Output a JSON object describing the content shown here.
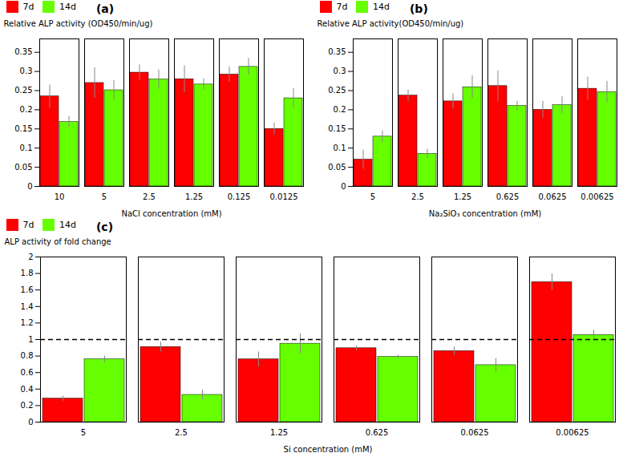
{
  "chart_data": [
    {
      "type": "bar",
      "title": "(a)",
      "xlabel": "NaCl concentration (mM)",
      "ylabel": "Relative ALP activity (OD450/min/ug)",
      "categories": [
        "10",
        "5",
        "2.5",
        "1.25",
        "0.125",
        "0.0125"
      ],
      "series": [
        {
          "name": "7d",
          "color": "#ff0000",
          "values": [
            0.235,
            0.27,
            0.297,
            0.28,
            0.292,
            0.15
          ],
          "error": [
            0.03,
            0.04,
            0.02,
            0.035,
            0.02,
            0.015
          ]
        },
        {
          "name": "14d",
          "color": "#66ff00",
          "values": [
            0.168,
            0.251,
            0.279,
            0.266,
            0.312,
            0.23
          ],
          "error": [
            0.015,
            0.025,
            0.025,
            0.015,
            0.022,
            0.025
          ]
        }
      ],
      "ylim": [
        0,
        0.385
      ],
      "yticks": [
        0.0,
        0.05,
        0.1,
        0.15,
        0.2,
        0.25,
        0.3,
        0.35
      ],
      "legend": "upper left"
    },
    {
      "type": "bar",
      "title": "(b)",
      "xlabel": "Na₂SiO₃ concentration (mM)",
      "ylabel": "Relative ALP activity(OD450/min/ug)",
      "categories": [
        "5",
        "2.5",
        "1.25",
        "0.625",
        "0.0625",
        "0.00625"
      ],
      "series": [
        {
          "name": "7d",
          "color": "#ff0000",
          "values": [
            0.07,
            0.237,
            0.222,
            0.262,
            0.2,
            0.255
          ],
          "error": [
            0.025,
            0.015,
            0.02,
            0.04,
            0.022,
            0.03
          ]
        },
        {
          "name": "14d",
          "color": "#66ff00",
          "values": [
            0.13,
            0.085,
            0.259,
            0.21,
            0.212,
            0.246
          ],
          "error": [
            0.015,
            0.012,
            0.03,
            0.012,
            0.022,
            0.028
          ]
        }
      ],
      "ylim": [
        0,
        0.385
      ],
      "yticks": [
        0.0,
        0.05,
        0.1,
        0.15,
        0.2,
        0.25,
        0.3,
        0.35
      ],
      "legend": "upper left"
    },
    {
      "type": "bar",
      "title": "(c)",
      "xlabel": "Si concentration (mM)",
      "ylabel": "ALP activity of fold change",
      "categories": [
        "5",
        "2.5",
        "1.25",
        "0.625",
        "0.0625",
        "0.00625"
      ],
      "series": [
        {
          "name": "7d",
          "color": "#ff0000",
          "values": [
            0.285,
            0.91,
            0.76,
            0.895,
            0.86,
            1.695
          ],
          "error": [
            0.03,
            0.06,
            0.09,
            0.03,
            0.05,
            0.1
          ]
        },
        {
          "name": "14d",
          "color": "#66ff00",
          "values": [
            0.76,
            0.33,
            0.95,
            0.79,
            0.69,
            1.055
          ],
          "error": [
            0.04,
            0.06,
            0.12,
            0.02,
            0.08,
            0.06
          ]
        }
      ],
      "ylim": [
        0,
        2.0
      ],
      "yticks": [
        0.0,
        0.2,
        0.4,
        0.6,
        0.8,
        1.0,
        1.2,
        1.4,
        1.6,
        1.8,
        2.0
      ],
      "reference_line": {
        "y": 1.0,
        "line_style": "dashed",
        "color": "black"
      },
      "legend": "upper left"
    }
  ]
}
